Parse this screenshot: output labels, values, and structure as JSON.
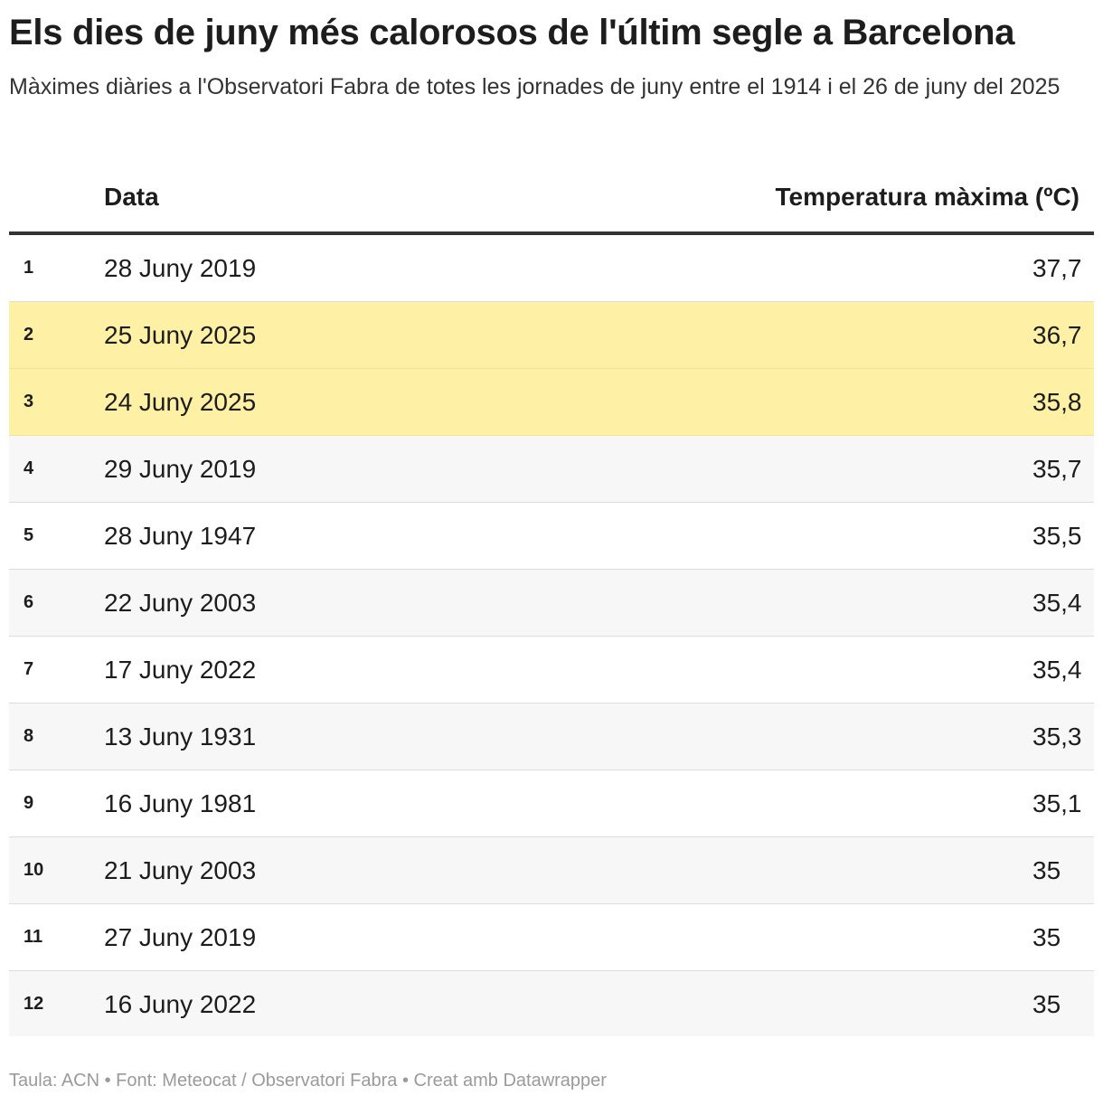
{
  "header": {
    "title": "Els dies de juny més calorosos de l'últim segle a Barcelona",
    "subtitle": "Màximes diàries a l'Observatori Fabra de totes les jornades de juny entre el 1914 i el 26 de juny del 2025"
  },
  "colors": {
    "highlight": "#fef0a5",
    "zebra": "#f7f7f7",
    "header_rule": "#333333",
    "footer_text": "#9a9a9a"
  },
  "chart_data": {
    "type": "table",
    "title": "Els dies de juny més calorosos de l'últim segle a Barcelona",
    "subtitle": "Màximes diàries a l'Observatori Fabra de totes les jornades de juny entre el 1914 i el 26 de juny del 2025",
    "columns": [
      "",
      "Data",
      "Temperatura màxima (ºC)"
    ],
    "rows": [
      {
        "rank": "1",
        "date": "28 Juny 2019",
        "temp": "37,7",
        "highlight": false
      },
      {
        "rank": "2",
        "date": "25 Juny 2025",
        "temp": "36,7",
        "highlight": true
      },
      {
        "rank": "3",
        "date": "24 Juny 2025",
        "temp": "35,8",
        "highlight": true
      },
      {
        "rank": "4",
        "date": "29 Juny 2019",
        "temp": "35,7",
        "highlight": false
      },
      {
        "rank": "5",
        "date": "28 Juny 1947",
        "temp": "35,5",
        "highlight": false
      },
      {
        "rank": "6",
        "date": "22 Juny 2003",
        "temp": "35,4",
        "highlight": false
      },
      {
        "rank": "7",
        "date": "17 Juny 2022",
        "temp": "35,4",
        "highlight": false
      },
      {
        "rank": "8",
        "date": "13 Juny 1931",
        "temp": "35,3",
        "highlight": false
      },
      {
        "rank": "9",
        "date": "16 Juny 1981",
        "temp": "35,1",
        "highlight": false
      },
      {
        "rank": "10",
        "date": "21 Juny 2003",
        "temp": "35",
        "highlight": false
      },
      {
        "rank": "11",
        "date": "27 Juny 2019",
        "temp": "35",
        "highlight": false
      },
      {
        "rank": "12",
        "date": "16 Juny 2022",
        "temp": "35",
        "highlight": false
      }
    ]
  },
  "footer": {
    "text": "Taula: ACN • Font: Meteocat / Observatori Fabra • Creat amb Datawrapper"
  }
}
